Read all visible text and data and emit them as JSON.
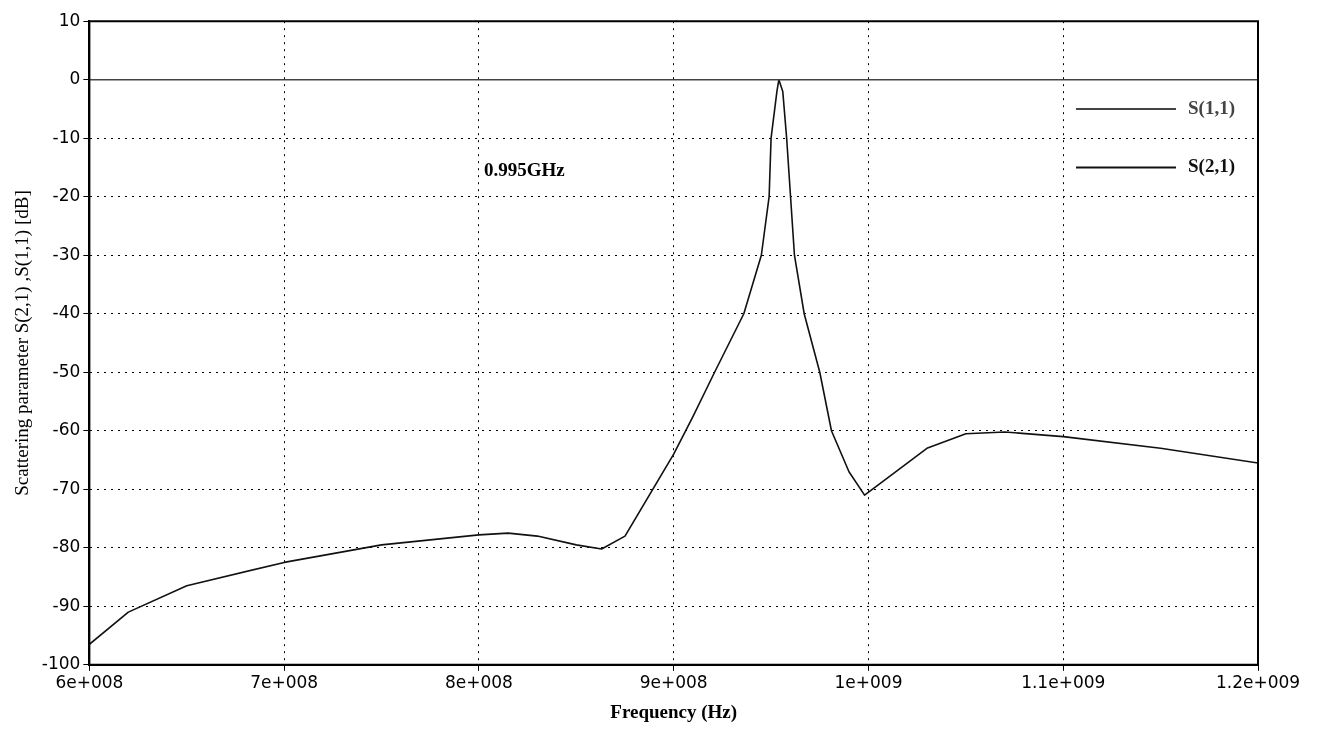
{
  "chart_data": {
    "type": "line",
    "xlabel": "Frequency (Hz)",
    "ylabel": "Scattering parameter S(2,1) ,S(1,1) [dB]",
    "annotations": [
      "0.995GHz"
    ],
    "xlim": [
      600000000,
      1200000000
    ],
    "xticks": [
      {
        "value": 600000000,
        "label": "6e+008"
      },
      {
        "value": 700000000,
        "label": "7e+008"
      },
      {
        "value": 800000000,
        "label": "8e+008"
      },
      {
        "value": 900000000,
        "label": "9e+008"
      },
      {
        "value": 1000000000,
        "label": "1e+009"
      },
      {
        "value": 1100000000,
        "label": "1.1e+009"
      },
      {
        "value": 1200000000,
        "label": "1.2e+009"
      }
    ],
    "ylim": [
      -100,
      10
    ],
    "yticks": [
      -100,
      -90,
      -80,
      -70,
      -60,
      -50,
      -40,
      -30,
      -20,
      -10,
      0,
      10
    ],
    "grid": true,
    "legend": "top right",
    "marker": "none",
    "line_style": "solid",
    "series": [
      {
        "name": "S(1,1)",
        "color": "#444444",
        "x": [
          600000000,
          1200000000
        ],
        "values": [
          0,
          0
        ]
      },
      {
        "name": "S(2,1)",
        "color": "#111111",
        "x": [
          600000000,
          620000000,
          650000000,
          700000000,
          750000000,
          800000000,
          815000000,
          830000000,
          850000000,
          863000000,
          875000000,
          900000000,
          910000000,
          921000000,
          936000000,
          945000000,
          949000000,
          950000000,
          953000000,
          954000000,
          956000000,
          958000000,
          960000000,
          962000000,
          967000000,
          975000000,
          981000000,
          990000000,
          998000000,
          1010000000,
          1030000000,
          1050000000,
          1070000000,
          1100000000,
          1150000000,
          1200000000
        ],
        "values": [
          -96.5,
          -91,
          -86.5,
          -82.5,
          -79.5,
          -77.8,
          -77.5,
          -78,
          -79.5,
          -80.2,
          -78,
          -64,
          -57.5,
          -50,
          -40,
          -30,
          -20,
          -10,
          -2,
          0,
          -2,
          -10,
          -20,
          -30,
          -40,
          -50,
          -60,
          -67,
          -71,
          -68,
          -63,
          -60.5,
          -60.2,
          -61,
          -63,
          -65.5
        ]
      }
    ]
  }
}
